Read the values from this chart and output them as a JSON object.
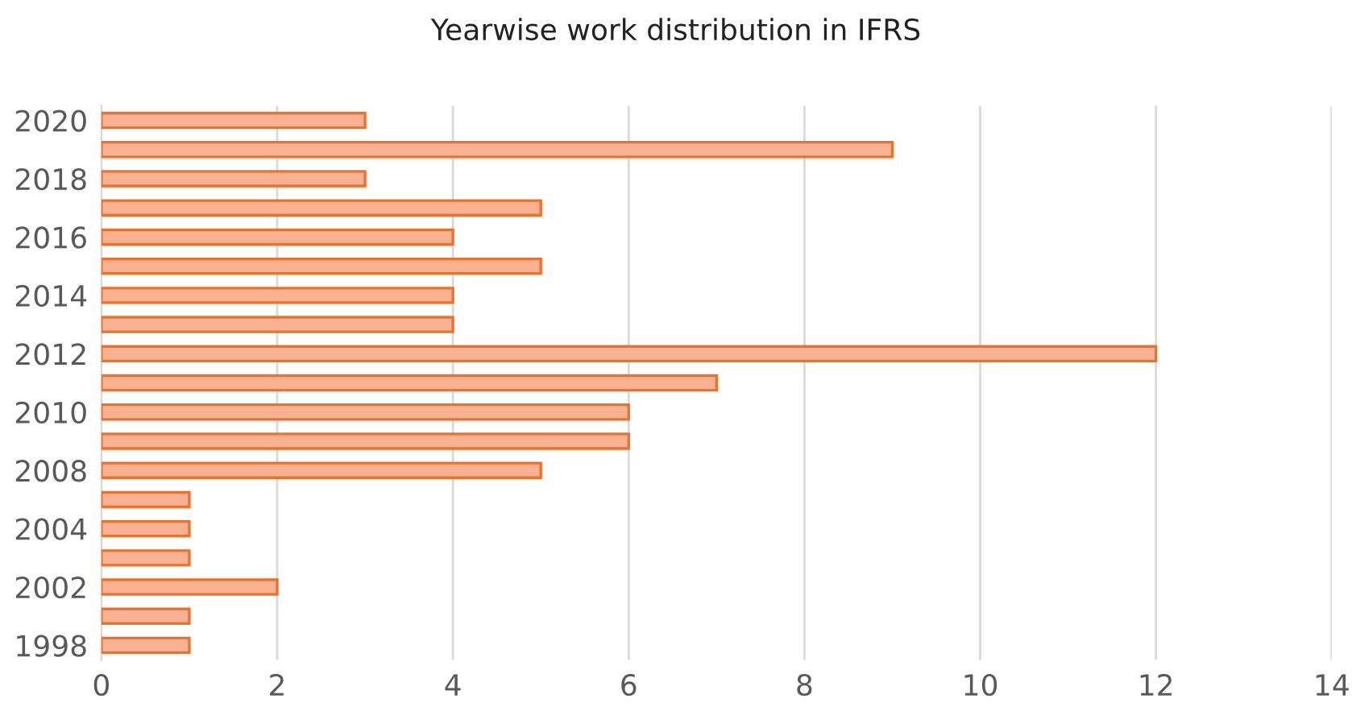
{
  "chart_data": {
    "type": "bar",
    "orientation": "horizontal",
    "title": "Yearwise work distribution in IFRS",
    "categories": [
      "2020",
      null,
      "2018",
      null,
      "2016",
      null,
      "2014",
      null,
      "2012",
      null,
      "2010",
      null,
      "2008",
      null,
      "2004",
      null,
      "2002",
      null,
      "1998"
    ],
    "values": [
      3,
      9,
      3,
      5,
      4,
      5,
      4,
      4,
      12,
      7,
      6,
      6,
      5,
      1,
      1,
      1,
      2,
      1,
      1
    ],
    "color": "#f8b191",
    "xlim": [
      0,
      14
    ],
    "xticks": [
      0,
      2,
      4,
      6,
      8,
      10,
      12,
      14
    ],
    "grid": "x",
    "legend": false
  }
}
